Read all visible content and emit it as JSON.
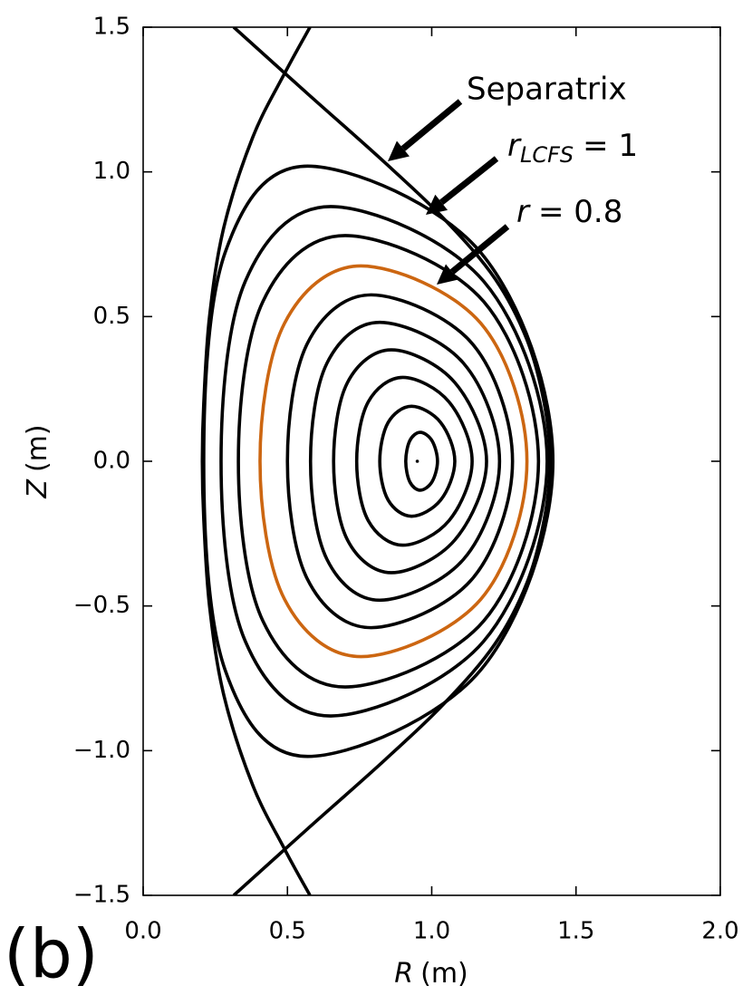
{
  "chart_data": {
    "type": "contour",
    "panel_label": "(b)",
    "xlabel": {
      "var": "R",
      "unit": "(m)"
    },
    "ylabel": {
      "var": "Z",
      "unit": "(m)"
    },
    "xlim": [
      0,
      2
    ],
    "ylim": [
      -1.5,
      1.5
    ],
    "xticks": [
      {
        "value": 0,
        "label": "0.0"
      },
      {
        "value": 0.5,
        "label": "0.5"
      },
      {
        "value": 1,
        "label": "1.0"
      },
      {
        "value": 1.5,
        "label": "1.5"
      },
      {
        "value": 2,
        "label": "2.0"
      }
    ],
    "yticks": [
      {
        "value": -1.5,
        "label": "−1.5"
      },
      {
        "value": -1,
        "label": "−1.0"
      },
      {
        "value": -0.5,
        "label": "−0.5"
      },
      {
        "value": 0,
        "label": "0.0"
      },
      {
        "value": 0.5,
        "label": "0.5"
      },
      {
        "value": 1,
        "label": "1.0"
      },
      {
        "value": 1.5,
        "label": "1.5"
      }
    ],
    "annotations": [
      {
        "text": "Separatrix"
      },
      {
        "var": "r",
        "sub": "LCFS",
        "rest": "= 1"
      },
      {
        "var": "r",
        "rest": "= 0.8"
      }
    ],
    "magnetic_axis": {
      "x": 0.95,
      "y": 0
    },
    "series": [
      {
        "color": "#000000",
        "closed": false,
        "x": [
          0.314,
          0.57,
          0.84,
          1.05,
          1.22,
          1.33,
          1.39,
          1.41,
          1.39,
          1.33,
          1.22,
          1.05,
          0.84,
          0.57,
          0.314
        ],
        "y": [
          1.5,
          1.27,
          1.03,
          0.83,
          0.63,
          0.42,
          0.2,
          0,
          -0.2,
          -0.42,
          -0.63,
          -0.83,
          -1.03,
          -1.27,
          -1.5
        ]
      },
      {
        "color": "#000000",
        "closed": false,
        "x": [
          0.578,
          0.49,
          0.38,
          0.28,
          0.23,
          0.21,
          0.205,
          0.21,
          0.23,
          0.28,
          0.38,
          0.49,
          0.578
        ],
        "y": [
          1.5,
          1.34,
          1.12,
          0.81,
          0.5,
          0.2,
          0,
          -0.2,
          -0.5,
          -0.81,
          -1.12,
          -1.34,
          -1.5
        ]
      },
      {
        "color": "#000000",
        "closed": true,
        "x": [
          1.02,
          1.001,
          0.96,
          0.924,
          0.91,
          0.924,
          0.96,
          1.001
        ],
        "y": [
          0,
          0.071,
          0.1,
          0.071,
          0,
          -0.071,
          -0.1,
          -0.071
        ]
      },
      {
        "color": "#000000",
        "closed": true,
        "x": [
          1.08,
          1.031,
          0.93,
          0.849,
          0.82,
          0.849,
          0.93,
          1.031
        ],
        "y": [
          0,
          0.134,
          0.19,
          0.134,
          0,
          -0.134,
          -0.19,
          -0.134
        ]
      },
      {
        "color": "#000000",
        "closed": true,
        "x": [
          1.14,
          1.06,
          0.9,
          0.78,
          0.74,
          0.78,
          0.9,
          1.06
        ],
        "y": [
          0,
          0.205,
          0.29,
          0.205,
          0,
          -0.205,
          -0.29,
          -0.205
        ]
      },
      {
        "color": "#000000",
        "closed": true,
        "x": [
          1.19,
          1.08,
          0.86,
          0.708,
          0.66,
          0.708,
          0.86,
          1.08
        ],
        "y": [
          0,
          0.272,
          0.385,
          0.272,
          0,
          -0.272,
          -0.385,
          -0.272
        ]
      },
      {
        "color": "#000000",
        "closed": true,
        "x": [
          1.235,
          1.11,
          0.82,
          0.637,
          0.58,
          0.637,
          0.82,
          1.11
        ],
        "y": [
          0,
          0.339,
          0.48,
          0.339,
          0,
          -0.339,
          -0.48,
          -0.339
        ]
      },
      {
        "color": "#000000",
        "closed": true,
        "x": [
          1.28,
          1.14,
          0.79,
          0.569,
          0.5,
          0.569,
          0.79,
          1.14
        ],
        "y": [
          0,
          0.407,
          0.575,
          0.407,
          0,
          -0.407,
          -0.575,
          -0.407
        ]
      },
      {
        "color": "#cc6611",
        "closed": true,
        "x": [
          1.33,
          1.17,
          0.755,
          0.49,
          0.405,
          0.49,
          0.755,
          1.17
        ],
        "y": [
          0,
          0.477,
          0.675,
          0.477,
          0,
          -0.477,
          -0.675,
          -0.477
        ]
      },
      {
        "color": "#000000",
        "closed": true,
        "x": [
          1.37,
          1.18,
          0.7,
          0.415,
          0.33,
          0.415,
          0.7,
          1.18
        ],
        "y": [
          0,
          0.552,
          0.78,
          0.552,
          0,
          -0.552,
          -0.78,
          -0.552
        ]
      },
      {
        "color": "#000000",
        "closed": true,
        "x": [
          1.4,
          1.18,
          0.65,
          0.354,
          0.27,
          0.354,
          0.65,
          1.18
        ],
        "y": [
          0,
          0.622,
          0.88,
          0.622,
          0,
          -0.622,
          -0.88,
          -0.622
        ]
      },
      {
        "color": "#000000",
        "closed": true,
        "x": [
          1.42,
          1.17,
          0.57,
          0.284,
          0.21,
          0.284,
          0.57,
          1.17
        ],
        "y": [
          0,
          0.721,
          1.02,
          0.721,
          0,
          -0.721,
          -1.02,
          -0.721
        ]
      }
    ]
  }
}
